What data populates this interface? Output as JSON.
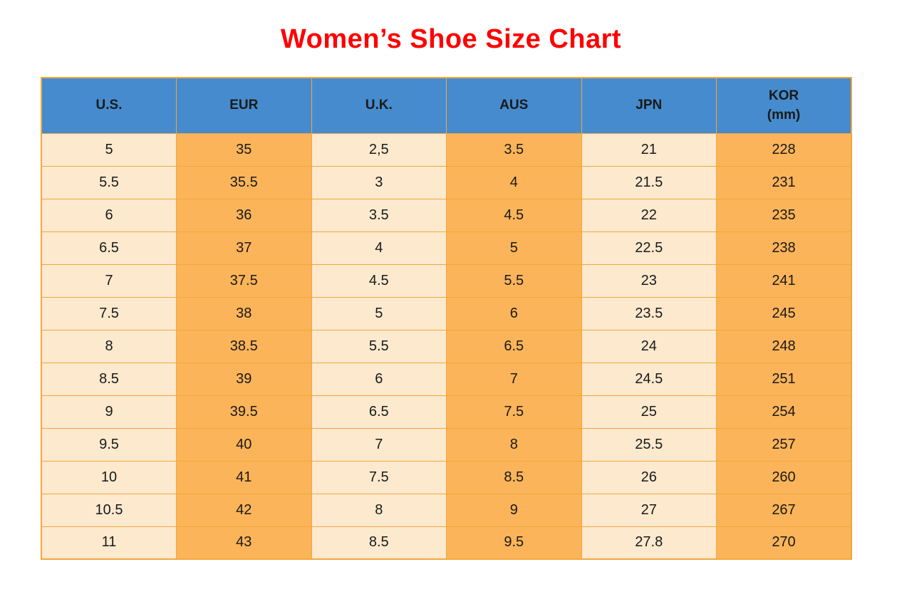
{
  "title": "Women’s Shoe Size Chart",
  "chart_data": {
    "type": "table",
    "title": "Women’s Shoe Size Chart",
    "columns": [
      {
        "label": "U.S.",
        "sublabel": ""
      },
      {
        "label": "EUR",
        "sublabel": ""
      },
      {
        "label": "U.K.",
        "sublabel": ""
      },
      {
        "label": "AUS",
        "sublabel": ""
      },
      {
        "label": "JPN",
        "sublabel": ""
      },
      {
        "label": "KOR",
        "sublabel": "(mm)"
      }
    ],
    "rows": [
      [
        "5",
        "35",
        "2,5",
        "3.5",
        "21",
        "228"
      ],
      [
        "5.5",
        "35.5",
        "3",
        "4",
        "21.5",
        "231"
      ],
      [
        "6",
        "36",
        "3.5",
        "4.5",
        "22",
        "235"
      ],
      [
        "6.5",
        "37",
        "4",
        "5",
        "22.5",
        "238"
      ],
      [
        "7",
        "37.5",
        "4.5",
        "5.5",
        "23",
        "241"
      ],
      [
        "7.5",
        "38",
        "5",
        "6",
        "23.5",
        "245"
      ],
      [
        "8",
        "38.5",
        "5.5",
        "6.5",
        "24",
        "248"
      ],
      [
        "8.5",
        "39",
        "6",
        "7",
        "24.5",
        "251"
      ],
      [
        "9",
        "39.5",
        "6.5",
        "7.5",
        "25",
        "254"
      ],
      [
        "9.5",
        "40",
        "7",
        "8",
        "25.5",
        "257"
      ],
      [
        "10",
        "41",
        "7.5",
        "8.5",
        "26",
        "260"
      ],
      [
        "10.5",
        "42",
        "8",
        "9",
        "27",
        "267"
      ],
      [
        "11",
        "43",
        "8.5",
        "9.5",
        "27.8",
        "270"
      ]
    ]
  },
  "colors": {
    "title": "#FF0000",
    "header_bg": "#468BCD",
    "border": "#F2A73D",
    "text": "#1a1a1a",
    "column_fills": [
      "#FCE9CE",
      "#FBB459",
      "#FCE9CE",
      "#FBB459",
      "#FCE9CE",
      "#FBB459"
    ]
  }
}
